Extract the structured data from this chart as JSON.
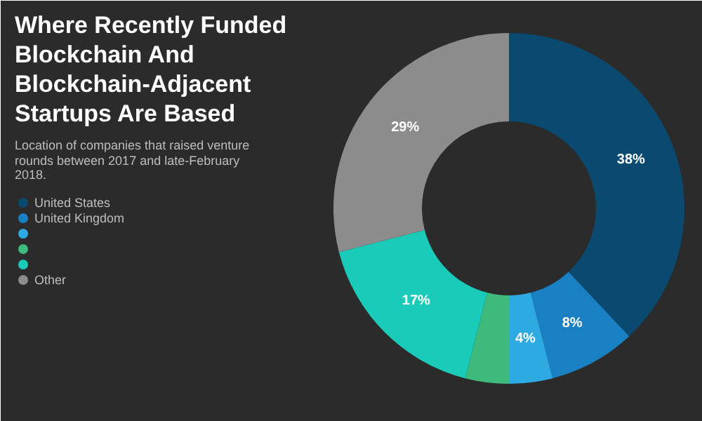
{
  "chart_data": {
    "type": "donut",
    "title": "Where Recently Funded Blockchain And Blockchain-Adjacent Startups Are Based",
    "subtitle": "Location of companies that raised venture rounds between 2017 and late-February 2018.",
    "categories": [
      "United States",
      "United Kingdom",
      null,
      null,
      null,
      "Other"
    ],
    "values": [
      38,
      8,
      4,
      4,
      17,
      29
    ],
    "colors": [
      "#0b4a70",
      "#1a80c4",
      "#2eaae3",
      "#3dba7c",
      "#19cbb8",
      "#8c8c8c"
    ],
    "value_labels": [
      "38%",
      "8%",
      "4%",
      null,
      "17%",
      "29%"
    ],
    "legend": "bottom left"
  }
}
